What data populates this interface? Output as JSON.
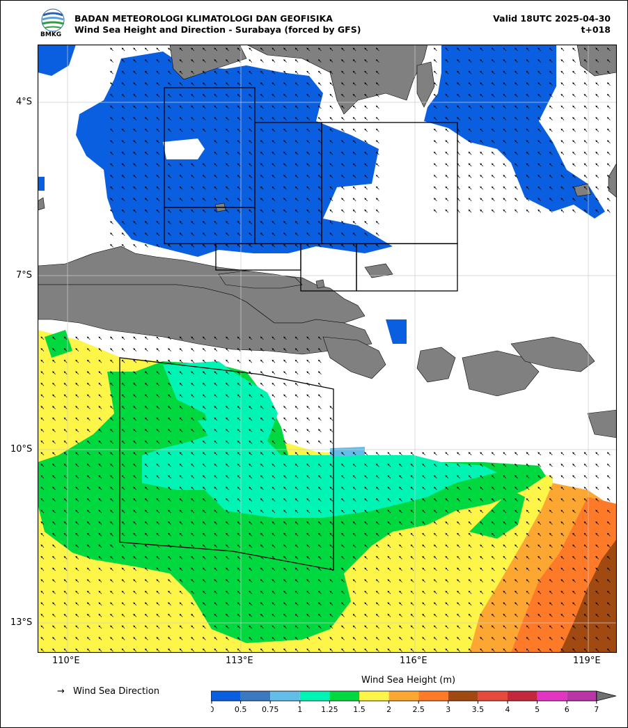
{
  "header": {
    "title": "BADAN METEOROLOGI KLIMATOLOGI DAN GEOFISIKA",
    "subtitle": "Wind Sea Height and Direction - Surabaya (forced by GFS)",
    "valid": "Valid 18UTC 2025-04-30",
    "step": "t+018"
  },
  "logo": {
    "text": "BMKG"
  },
  "axes": {
    "lat_ticks": [
      "4°S",
      "7°S",
      "10°S",
      "13°S"
    ],
    "lon_ticks": [
      "110°E",
      "113°E",
      "116°E",
      "119°E"
    ]
  },
  "legend": {
    "direction_symbol": "→",
    "direction_label": "Wind Sea Direction"
  },
  "colorbar": {
    "title": "Wind Sea Height (m)",
    "ticks": [
      "0",
      "0.5",
      "0.75",
      "1",
      "1.25",
      "1.5",
      "2",
      "2.5",
      "3",
      "3.5",
      "4",
      "5",
      "6",
      "7"
    ],
    "colors": [
      "#0a5fe0",
      "#3a78c0",
      "#62bde8",
      "#00f5b4",
      "#00d840",
      "#fef549",
      "#fda733",
      "#fc7a28",
      "#a04a12",
      "#e64a3c",
      "#c4273c",
      "#e236c2",
      "#b836a6"
    ],
    "extend_color": "#707070"
  },
  "colors": {
    "land": "#808080",
    "grid": "#cccccc"
  }
}
